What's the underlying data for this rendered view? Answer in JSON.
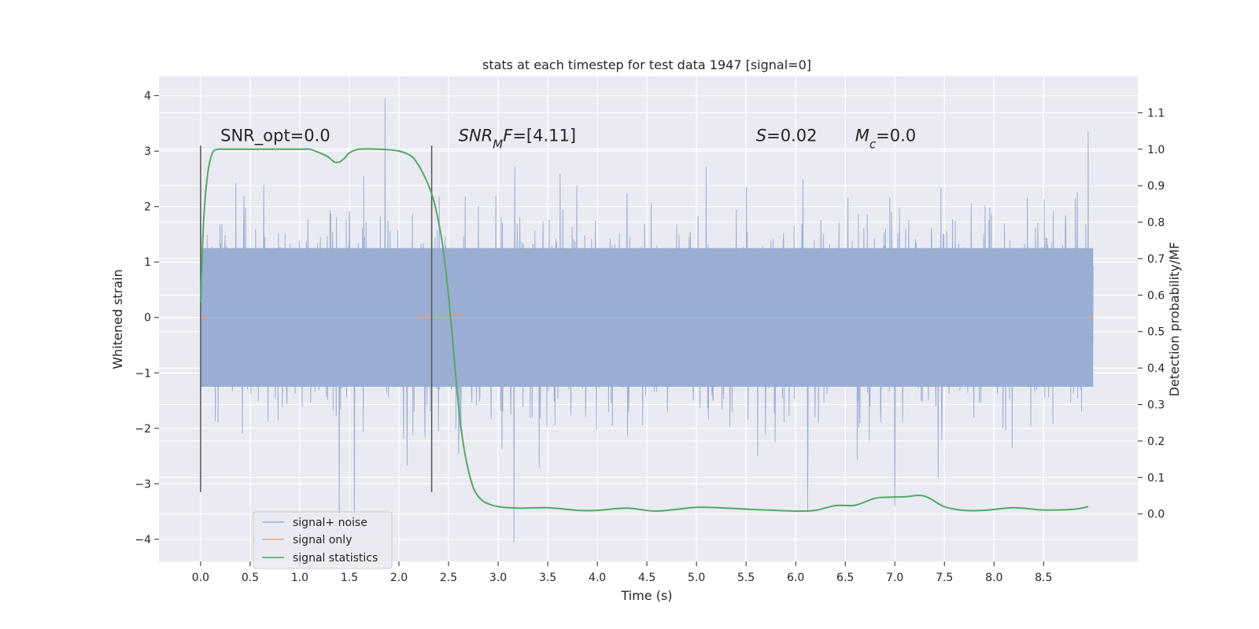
{
  "chart_data": {
    "type": "line",
    "title": "stats at each timestep for test data 1947 [signal=0]",
    "xlabel": "Time (s)",
    "ylabel": "Whitened strain",
    "y2label": "Detection probability/MF",
    "xlim": [
      -0.42,
      9.45
    ],
    "ylim": [
      -4.4,
      4.35
    ],
    "y2lim": [
      -0.13,
      1.2
    ],
    "x_ticks": [
      0.0,
      0.5,
      1.0,
      1.5,
      2.0,
      2.5,
      3.0,
      3.5,
      4.0,
      4.5,
      5.0,
      5.5,
      6.0,
      6.5,
      7.0,
      7.5,
      8.0,
      8.5
    ],
    "x_tick_labels": [
      "0.0",
      "0.5",
      "1.0",
      "1.5",
      "2.0",
      "2.5",
      "3.0",
      "3.5",
      "4.0",
      "4.5",
      "5.0",
      "5.5",
      "6.0",
      "6.5",
      "7.0",
      "7.5",
      "8.0",
      "8.5"
    ],
    "y_ticks": [
      4,
      3,
      2,
      1,
      0,
      -1,
      -2,
      -3,
      -4
    ],
    "y_tick_labels": [
      "4",
      "3",
      "2",
      "1",
      "0",
      "−1",
      "−2",
      "−3",
      "−4"
    ],
    "y2_ticks": [
      1.1,
      1.0,
      0.9,
      0.8,
      0.7,
      0.6,
      0.5,
      0.4,
      0.3,
      0.2,
      0.1,
      0.0
    ],
    "y2_tick_labels": [
      "1.1",
      "1.0",
      "0.9",
      "0.8",
      "0.7",
      "0.6",
      "0.5",
      "0.4",
      "0.3",
      "0.2",
      "0.1",
      "0.0"
    ],
    "grid": true,
    "legend_placement": "lower-left",
    "colors": {
      "background": "#eaeaf2",
      "grid": "#ffffff",
      "noise": "#9aadd2",
      "signal": "#e8a384",
      "statistics": "#55a868",
      "marker": "#555555"
    },
    "series": [
      {
        "name": "signal+ noise",
        "axis": "left",
        "x_range": [
          0.0,
          9.0
        ],
        "sample_rate_hz": 256,
        "envelope": {
          "core_range": [
            -1.25,
            1.25
          ],
          "typical_peak": 2.5,
          "max": 3.95,
          "min": -4.05
        },
        "notable_peaks": [
          {
            "x": 1.86,
            "y": 3.95
          },
          {
            "x": 8.95,
            "y": 3.35
          },
          {
            "x": 3.16,
            "y": -4.05
          },
          {
            "x": 1.4,
            "y": -3.6
          },
          {
            "x": 1.55,
            "y": -3.6
          },
          {
            "x": 6.12,
            "y": -3.5
          },
          {
            "x": 7.0,
            "y": -3.4
          }
        ]
      },
      {
        "name": "signal only",
        "axis": "left",
        "x": [
          0.0,
          9.0
        ],
        "y": [
          0.0,
          0.0
        ]
      },
      {
        "name": "signal statistics",
        "axis": "right",
        "x": [
          0.0,
          0.03,
          0.07,
          0.12,
          0.18,
          0.25,
          0.4,
          0.6,
          0.8,
          1.0,
          1.1,
          1.2,
          1.28,
          1.35,
          1.4,
          1.45,
          1.5,
          1.6,
          1.8,
          2.0,
          2.1,
          2.15,
          2.2,
          2.25,
          2.3,
          2.35,
          2.4,
          2.45,
          2.5,
          2.55,
          2.6,
          2.65,
          2.7,
          2.75,
          2.8,
          2.85,
          2.9,
          3.0,
          3.2,
          3.5,
          3.8,
          4.0,
          4.3,
          4.6,
          5.0,
          5.3,
          5.6,
          6.0,
          6.2,
          6.4,
          6.6,
          6.8,
          6.95,
          7.1,
          7.25,
          7.35,
          7.5,
          7.7,
          7.9,
          8.2,
          8.5,
          8.8,
          8.95
        ],
        "y": [
          0.58,
          0.8,
          0.93,
          0.99,
          1.0,
          1.0,
          1.0,
          1.0,
          1.0,
          1.0,
          1.0,
          0.99,
          0.98,
          0.965,
          0.965,
          0.975,
          0.99,
          1.0,
          1.0,
          0.995,
          0.985,
          0.975,
          0.955,
          0.93,
          0.9,
          0.86,
          0.8,
          0.72,
          0.6,
          0.45,
          0.3,
          0.19,
          0.12,
          0.072,
          0.048,
          0.035,
          0.028,
          0.02,
          0.016,
          0.017,
          0.01,
          0.01,
          0.016,
          0.008,
          0.018,
          0.016,
          0.012,
          0.008,
          0.01,
          0.023,
          0.024,
          0.043,
          0.046,
          0.047,
          0.051,
          0.043,
          0.02,
          0.01,
          0.01,
          0.017,
          0.011,
          0.013,
          0.02
        ]
      }
    ],
    "vertical_markers": [
      {
        "x": 0.0,
        "y_range": [
          -3.15,
          3.1
        ]
      },
      {
        "x": 2.33,
        "y_range": [
          -3.15,
          3.1
        ]
      }
    ],
    "annotations": [
      {
        "segments": [
          {
            "t": "SNR_opt=0.0"
          }
        ],
        "x": 0.2,
        "y": 3.18
      },
      {
        "segments": [
          {
            "t": "SNR",
            "i": true
          },
          {
            "t": "M",
            "i": true,
            "sub": true
          },
          {
            "t": "F",
            "i": true
          },
          {
            "t": "=[4.11]"
          }
        ],
        "x": 2.6,
        "y": 3.18
      },
      {
        "segments": [
          {
            "t": "S",
            "i": true
          },
          {
            "t": "=0.02"
          }
        ],
        "x": 5.6,
        "y": 3.18
      },
      {
        "segments": [
          {
            "t": "M",
            "i": true
          },
          {
            "t": "c",
            "i": true,
            "sub": true
          },
          {
            "t": "=0.0"
          }
        ],
        "x": 6.6,
        "y": 3.18
      }
    ]
  }
}
